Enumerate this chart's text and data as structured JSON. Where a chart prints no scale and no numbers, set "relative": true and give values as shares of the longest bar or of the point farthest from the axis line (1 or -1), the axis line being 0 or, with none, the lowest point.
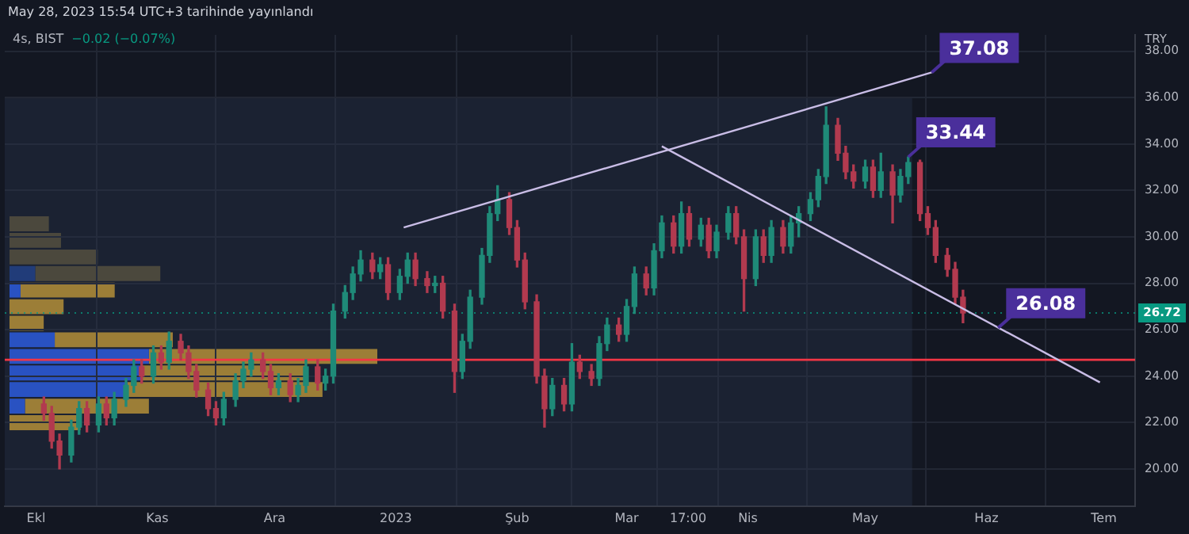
{
  "chart_data": [
    {
      "type": "candlestick",
      "title": "4s, BIST",
      "subtitle": "−0.02 (−0.07%)",
      "ylabel": "TRY",
      "annotations": [
        "May 28, 2023 15:54 UTC+3 tarihinde yayınlandı",
        {
          "text": "37.08",
          "x": "2023-05-18",
          "y": 37.08
        },
        {
          "text": "33.44",
          "x": "2023-05-12",
          "y": 33.44
        },
        {
          "text": "26.08",
          "x": "2023-06-04",
          "y": 26.08
        }
      ],
      "x": [
        "2022-10-03",
        "2022-10-05",
        "2022-10-07",
        "2022-10-10",
        "2022-10-12",
        "2022-10-14",
        "2022-10-17",
        "2022-10-19",
        "2022-10-21",
        "2022-10-24",
        "2022-10-26",
        "2022-10-28",
        "2022-10-31",
        "2022-11-02",
        "2022-11-04",
        "2022-11-07",
        "2022-11-09",
        "2022-11-11",
        "2022-11-14",
        "2022-11-16",
        "2022-11-18",
        "2022-11-21",
        "2022-11-23",
        "2022-11-25",
        "2022-11-28",
        "2022-11-30",
        "2022-12-02",
        "2022-12-05",
        "2022-12-07",
        "2022-12-09",
        "2022-12-12",
        "2022-12-14",
        "2022-12-16",
        "2022-12-19",
        "2022-12-21",
        "2022-12-23",
        "2022-12-26",
        "2022-12-28",
        "2022-12-30",
        "2023-01-02",
        "2023-01-04",
        "2023-01-06",
        "2023-01-09",
        "2023-01-11",
        "2023-01-13",
        "2023-01-16",
        "2023-01-18",
        "2023-01-20",
        "2023-01-23",
        "2023-01-25",
        "2023-01-27",
        "2023-01-30",
        "2023-02-01",
        "2023-02-03",
        "2023-02-06",
        "2023-02-08",
        "2023-02-10",
        "2023-02-13",
        "2023-02-15",
        "2023-02-17",
        "2023-02-20",
        "2023-02-22",
        "2023-02-24",
        "2023-02-27",
        "2023-03-01",
        "2023-03-03",
        "2023-03-06",
        "2023-03-08",
        "2023-03-10",
        "2023-03-13",
        "2023-03-15",
        "2023-03-17",
        "2023-03-20",
        "2023-03-22",
        "2023-03-24",
        "2023-03-27",
        "2023-03-29",
        "2023-03-31",
        "2023-04-03",
        "2023-04-05",
        "2023-04-07",
        "2023-04-10",
        "2023-04-12",
        "2023-04-14",
        "2023-04-17",
        "2023-04-19",
        "2023-04-21",
        "2023-04-24",
        "2023-04-26",
        "2023-04-28",
        "2023-05-01",
        "2023-05-03",
        "2023-05-05",
        "2023-05-08",
        "2023-05-10",
        "2023-05-12",
        "2023-05-15",
        "2023-05-17",
        "2023-05-19",
        "2023-05-22",
        "2023-05-24",
        "2023-05-26"
      ],
      "ohlc": [
        [
          22.8,
          23.1,
          22.1,
          22.4
        ],
        [
          22.4,
          22.7,
          20.9,
          21.2
        ],
        [
          21.2,
          21.5,
          20.0,
          20.6
        ],
        [
          20.6,
          22.1,
          20.3,
          21.8
        ],
        [
          21.8,
          22.9,
          21.5,
          22.6
        ],
        [
          22.6,
          22.9,
          21.6,
          21.9
        ],
        [
          21.9,
          23.1,
          21.6,
          22.8
        ],
        [
          22.8,
          23.1,
          21.9,
          22.2
        ],
        [
          22.2,
          23.3,
          21.9,
          23.0
        ],
        [
          23.0,
          23.9,
          22.7,
          23.6
        ],
        [
          23.6,
          24.7,
          23.3,
          24.4
        ],
        [
          24.4,
          24.7,
          23.7,
          24.0
        ],
        [
          24.0,
          25.3,
          23.7,
          25.0
        ],
        [
          25.0,
          25.3,
          24.3,
          24.6
        ],
        [
          24.6,
          25.9,
          24.3,
          25.5
        ],
        [
          25.5,
          25.8,
          24.7,
          25.0
        ],
        [
          25.0,
          25.3,
          23.9,
          24.2
        ],
        [
          24.2,
          24.5,
          23.1,
          23.4
        ],
        [
          23.4,
          23.7,
          22.3,
          22.6
        ],
        [
          22.6,
          22.9,
          21.9,
          22.2
        ],
        [
          22.2,
          23.3,
          21.9,
          23.0
        ],
        [
          23.0,
          24.1,
          22.7,
          23.8
        ],
        [
          23.8,
          24.6,
          23.5,
          24.3
        ],
        [
          24.3,
          25.0,
          24.0,
          24.7
        ],
        [
          24.7,
          25.0,
          23.9,
          24.2
        ],
        [
          24.2,
          24.5,
          23.2,
          23.5
        ],
        [
          23.5,
          24.1,
          23.2,
          23.8
        ],
        [
          23.8,
          24.1,
          22.9,
          23.2
        ],
        [
          23.2,
          23.9,
          22.9,
          23.6
        ],
        [
          23.6,
          24.7,
          23.3,
          24.4
        ],
        [
          24.4,
          24.7,
          23.4,
          23.7
        ],
        [
          23.7,
          24.3,
          23.4,
          24.0
        ],
        [
          24.0,
          27.1,
          23.7,
          26.8
        ],
        [
          26.8,
          27.9,
          26.5,
          27.6
        ],
        [
          27.6,
          28.7,
          27.3,
          28.4
        ],
        [
          28.4,
          29.4,
          28.1,
          29.0
        ],
        [
          29.0,
          29.3,
          28.2,
          28.5
        ],
        [
          28.5,
          29.1,
          28.2,
          28.8
        ],
        [
          28.8,
          29.1,
          27.3,
          27.6
        ],
        [
          27.6,
          28.6,
          27.3,
          28.3
        ],
        [
          28.3,
          29.3,
          28.0,
          29.0
        ],
        [
          29.0,
          29.3,
          27.9,
          28.2
        ],
        [
          28.2,
          28.5,
          27.6,
          27.9
        ],
        [
          27.9,
          28.3,
          27.6,
          28.0
        ],
        [
          28.0,
          28.3,
          26.5,
          26.8
        ],
        [
          26.8,
          27.1,
          23.3,
          24.2
        ],
        [
          24.2,
          25.8,
          23.9,
          25.5
        ],
        [
          25.5,
          27.7,
          25.2,
          27.4
        ],
        [
          27.4,
          29.5,
          27.1,
          29.2
        ],
        [
          29.2,
          31.3,
          28.9,
          31.0
        ],
        [
          31.0,
          32.2,
          30.7,
          31.6
        ],
        [
          31.6,
          31.9,
          30.1,
          30.4
        ],
        [
          30.4,
          30.7,
          28.7,
          29.0
        ],
        [
          29.0,
          29.3,
          26.9,
          27.2
        ],
        [
          27.2,
          27.5,
          23.7,
          24.0
        ],
        [
          24.0,
          24.3,
          21.8,
          22.6
        ],
        [
          22.6,
          23.9,
          22.3,
          23.6
        ],
        [
          23.6,
          23.9,
          22.5,
          22.8
        ],
        [
          22.8,
          25.4,
          22.5,
          24.6
        ],
        [
          24.6,
          24.9,
          23.9,
          24.2
        ],
        [
          24.2,
          24.5,
          23.6,
          23.9
        ],
        [
          23.9,
          25.7,
          23.6,
          25.4
        ],
        [
          25.4,
          26.5,
          25.1,
          26.2
        ],
        [
          26.2,
          26.5,
          25.5,
          25.8
        ],
        [
          25.8,
          27.3,
          25.5,
          27.0
        ],
        [
          27.0,
          28.7,
          26.7,
          28.4
        ],
        [
          28.4,
          28.7,
          27.5,
          27.8
        ],
        [
          27.8,
          29.7,
          27.5,
          29.4
        ],
        [
          29.4,
          30.9,
          29.1,
          30.6
        ],
        [
          30.6,
          30.9,
          29.3,
          29.6
        ],
        [
          29.6,
          31.5,
          29.3,
          31.0
        ],
        [
          31.0,
          31.3,
          29.6,
          29.9
        ],
        [
          29.9,
          30.8,
          29.6,
          30.5
        ],
        [
          30.5,
          30.8,
          29.1,
          29.4
        ],
        [
          29.4,
          30.5,
          29.1,
          30.2
        ],
        [
          30.2,
          31.3,
          29.9,
          31.0
        ],
        [
          31.0,
          31.3,
          29.7,
          30.0
        ],
        [
          30.0,
          30.3,
          26.8,
          28.2
        ],
        [
          28.2,
          30.3,
          27.9,
          30.0
        ],
        [
          30.0,
          30.3,
          28.9,
          29.2
        ],
        [
          29.2,
          30.7,
          28.9,
          30.4
        ],
        [
          30.4,
          30.7,
          29.3,
          29.6
        ],
        [
          29.6,
          30.9,
          29.3,
          30.6
        ],
        [
          30.6,
          31.3,
          30.0,
          31.0
        ],
        [
          31.0,
          31.9,
          30.7,
          31.6
        ],
        [
          31.6,
          32.9,
          31.3,
          32.6
        ],
        [
          32.6,
          35.6,
          32.3,
          34.8
        ],
        [
          34.8,
          35.1,
          33.3,
          33.6
        ],
        [
          33.6,
          33.9,
          32.5,
          32.8
        ],
        [
          32.8,
          33.1,
          32.1,
          32.4
        ],
        [
          32.4,
          33.3,
          32.1,
          33.0
        ],
        [
          33.0,
          33.3,
          31.7,
          32.0
        ],
        [
          32.0,
          33.6,
          31.7,
          32.8
        ],
        [
          32.8,
          33.1,
          30.6,
          31.8
        ],
        [
          31.8,
          32.9,
          31.5,
          32.6
        ],
        [
          32.6,
          33.44,
          32.3,
          33.2
        ],
        [
          33.2,
          33.3,
          30.7,
          31.0
        ],
        [
          31.0,
          31.3,
          30.1,
          30.4
        ],
        [
          30.4,
          30.7,
          28.9,
          29.2
        ],
        [
          29.2,
          29.5,
          28.3,
          28.6
        ],
        [
          28.6,
          28.9,
          27.1,
          27.4
        ],
        [
          27.4,
          27.7,
          26.3,
          26.72
        ]
      ],
      "series": [
        {
          "type": "line",
          "color": "#c9bde6",
          "x": [
            "2023-01-03",
            "2023-05-18"
          ],
          "values": [
            30.4,
            37.08
          ]
        },
        {
          "type": "line",
          "color": "#c9bde6",
          "x": [
            "2023-03-10",
            "2023-06-30"
          ],
          "values": [
            33.9,
            23.73
          ]
        }
      ],
      "ref_lines": [
        {
          "axis": "y",
          "value": 24.7,
          "color": "#f23645"
        },
        {
          "axis": "y",
          "value": 26.72,
          "label": "26.72",
          "color": "#089981",
          "line_style": "dotted"
        }
      ],
      "bands": [
        {
          "axis": "x",
          "from": "2022-09-23",
          "to": "2023-05-13",
          "color": "#2a3750"
        }
      ],
      "xlim": [
        "2022-09-23",
        "2023-07-09"
      ],
      "xticks": [
        {
          "value": "2022-10-01",
          "label": "Ekl"
        },
        {
          "value": "2022-11-01",
          "label": "Kas"
        },
        {
          "value": "2022-12-01",
          "label": "Ara"
        },
        {
          "value": "2023-01-01",
          "label": "2023"
        },
        {
          "value": "2023-02-01",
          "label": "Şub"
        },
        {
          "value": "2023-03-01",
          "label": "Mar"
        },
        {
          "value": "2023-03-16T17:00",
          "label": "17:00"
        },
        {
          "value": "2023-04-01",
          "label": "Nis"
        },
        {
          "value": "2023-05-01",
          "label": "May"
        },
        {
          "value": "2023-06-01",
          "label": "Haz"
        },
        {
          "value": "2023-07-01",
          "label": "Tem"
        }
      ],
      "ylim": [
        18.4,
        38.7
      ],
      "yticks": [
        {
          "value": 20,
          "label": "20.00"
        },
        {
          "value": 22,
          "label": "22.00"
        },
        {
          "value": 24,
          "label": "24.00"
        },
        {
          "value": 26,
          "label": "26.00"
        },
        {
          "value": 28,
          "label": "28.00"
        },
        {
          "value": 30,
          "label": "30.00"
        },
        {
          "value": 32,
          "label": "32.00"
        },
        {
          "value": 34,
          "label": "34.00"
        },
        {
          "value": 36,
          "label": "36.00"
        },
        {
          "value": 38,
          "label": "38.00"
        }
      ],
      "grid": true,
      "legend": false
    },
    {
      "type": "bar",
      "orientation": "horizontal",
      "stacked": true,
      "relative": true,
      "tick_labels": false,
      "legend": false,
      "categories": [
        null,
        null,
        null,
        null,
        null,
        null,
        null,
        null,
        null,
        null,
        null,
        null,
        null
      ],
      "series": [
        {
          "colors": [
            "#2962ff",
            "#2962ff",
            "#2962ff",
            "#1c3f8f",
            "#2962ff",
            "#2962ff",
            "#2962ff",
            "#2962ff",
            "#2962ff",
            "#2962ff",
            "#2962ff",
            "#2962ff",
            "#2962ff"
          ],
          "values": [
            0,
            0,
            0,
            0.07,
            0.03,
            0,
            0,
            0.123,
            0.379,
            0.356,
            0.321,
            0.042,
            0
          ]
        },
        {
          "colors": [
            "#5c5233",
            "#5c5233",
            "#5c5233",
            "#5c5233",
            "#d9a52a",
            "#d9a52a",
            "#d9a52a",
            "#d9a52a",
            "#d9a52a",
            "#d9a52a",
            "#d9a52a",
            "#d9a52a",
            "#d9a52a"
          ],
          "values": [
            0.107,
            0.14,
            0.24,
            0.34,
            0.256,
            0.147,
            0.093,
            0.321,
            0.621,
            0.449,
            0.53,
            0.337,
            0.193
          ]
        }
      ]
    }
  ]
}
